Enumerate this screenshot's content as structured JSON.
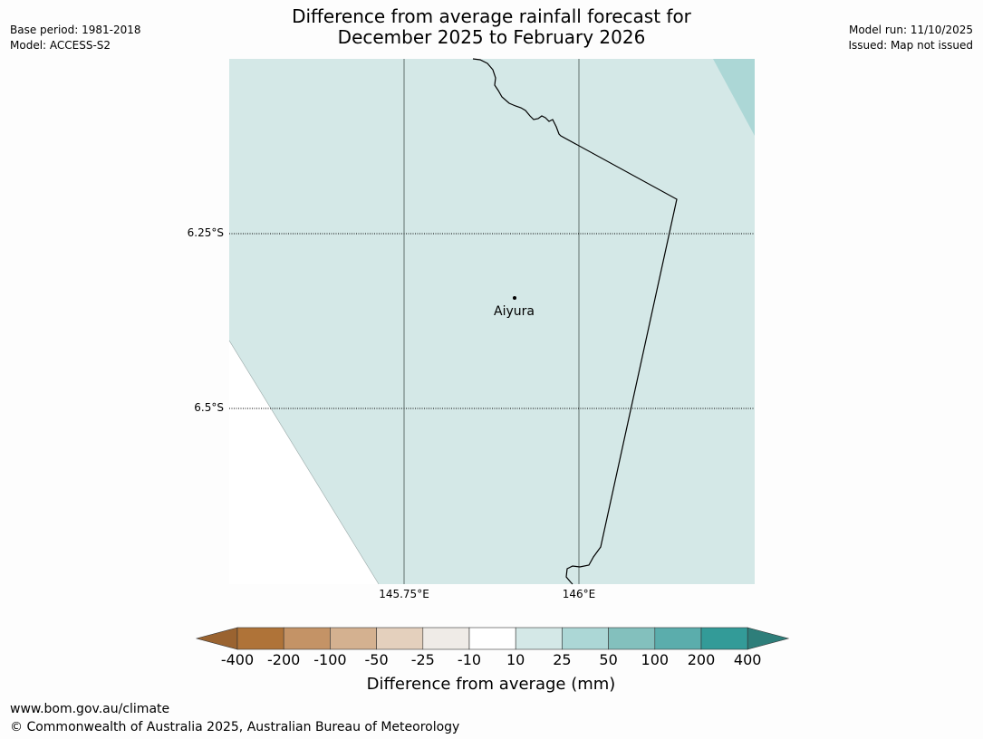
{
  "header": {
    "title_line1": "Difference from average rainfall forecast for",
    "title_line2": "December 2025 to February 2026",
    "base_period": "Base period: 1981-2018",
    "model": "Model: ACCESS-S2",
    "model_run": "Model run: 11/10/2025",
    "issued": "Issued: Map not issued"
  },
  "map": {
    "background_color": "#d4e8e7",
    "corner_color": "#acd7d6",
    "latitudes": [
      {
        "label": "6.25°S"
      },
      {
        "label": "6.5°S"
      }
    ],
    "longitudes": [
      {
        "label": "145.75°E"
      },
      {
        "label": "146°E"
      }
    ],
    "place": {
      "name": "Aiyura"
    }
  },
  "colorbar": {
    "title": "Difference from average (mm)",
    "ticks": [
      "-400",
      "-200",
      "-100",
      "-50",
      "-25",
      "-10",
      "10",
      "25",
      "50",
      "100",
      "200",
      "400"
    ],
    "colors": [
      "#af7338",
      "#c49366",
      "#d4b190",
      "#e4d0bd",
      "#efebe7",
      "#ffffff",
      "#d4e8e7",
      "#acd7d6",
      "#83c0bd",
      "#5badac",
      "#339b98"
    ],
    "under_color": "#9a6330",
    "over_color": "#2e7e7a"
  },
  "footer": {
    "url": "www.bom.gov.au/climate",
    "copyright": "© Commonwealth of Australia 2025, Australian Bureau of Meteorology"
  }
}
